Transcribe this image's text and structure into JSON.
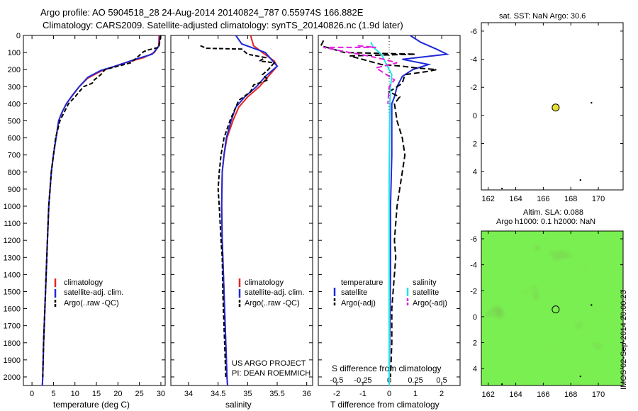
{
  "header": {
    "line1": "Argo profile: AO 5904518_28 24-Aug-2014 20140824_787 0.55974S 166.882E",
    "line2": "Climatology: CARS2009. Satellite-adjusted climatology: synTS_20140826.nc (1.9d later)"
  },
  "colors": {
    "climatology": "#e8231f",
    "satellite": "#1f2ad8",
    "argo": "#000000",
    "sat_salinity": "#22e3e8",
    "argo_salinity": "#e020e0",
    "map_green": "#3bbd3b"
  },
  "side_text": "IMOS 02-Sep-2014 20:00:23",
  "chart_data": [
    {
      "type": "line",
      "name": "temperature-profile",
      "xlabel": "temperature (deg C)",
      "ylabel": "",
      "xlim": [
        -2,
        31
      ],
      "ylim": [
        2050,
        0
      ],
      "xticks": [
        "0",
        "5",
        "10",
        "15",
        "20",
        "25",
        "30"
      ],
      "xtick_values": [
        0,
        5,
        10,
        15,
        20,
        25,
        30
      ],
      "yticks": [
        "0",
        "100",
        "200",
        "300",
        "400",
        "500",
        "600",
        "700",
        "800",
        "900",
        "1000",
        "1100",
        "1200",
        "1300",
        "1400",
        "1500",
        "1600",
        "1700",
        "1800",
        "1900",
        "2000"
      ],
      "ytick_values": [
        0,
        100,
        200,
        300,
        400,
        500,
        600,
        700,
        800,
        900,
        1000,
        1100,
        1200,
        1300,
        1400,
        1500,
        1600,
        1700,
        1800,
        1900,
        2000
      ],
      "legend": [
        "climatology",
        "satellite-adj. clim.",
        "Argo(..raw -QC)"
      ],
      "series": [
        {
          "name": "climatology",
          "color_key": "climatology",
          "dash": "none",
          "points": [
            [
              29.6,
              0
            ],
            [
              29.5,
              60
            ],
            [
              28.5,
              100
            ],
            [
              26,
              130
            ],
            [
              21,
              165
            ],
            [
              16,
              210
            ],
            [
              13,
              250
            ],
            [
              11,
              300
            ],
            [
              9.5,
              350
            ],
            [
              8,
              400
            ],
            [
              7,
              450
            ],
            [
              6.2,
              500
            ],
            [
              5.6,
              600
            ],
            [
              5,
              700
            ],
            [
              4.5,
              800
            ],
            [
              4.2,
              900
            ],
            [
              3.9,
              1000
            ],
            [
              3.6,
              1200
            ],
            [
              3.3,
              1400
            ],
            [
              3,
              1600
            ],
            [
              2.7,
              1800
            ],
            [
              2.5,
              2000
            ],
            [
              2.4,
              2050
            ]
          ]
        },
        {
          "name": "satellite",
          "color_key": "satellite",
          "dash": "none",
          "points": [
            [
              29.8,
              0
            ],
            [
              29.6,
              60
            ],
            [
              28,
              110
            ],
            [
              24,
              140
            ],
            [
              20,
              175
            ],
            [
              16,
              205
            ],
            [
              13,
              245
            ],
            [
              11,
              300
            ],
            [
              9.4,
              350
            ],
            [
              8,
              400
            ],
            [
              7,
              450
            ],
            [
              6.2,
              500
            ],
            [
              5.6,
              600
            ],
            [
              5,
              700
            ],
            [
              4.5,
              800
            ],
            [
              4.2,
              900
            ],
            [
              3.9,
              1000
            ],
            [
              3.6,
              1200
            ],
            [
              3.3,
              1400
            ],
            [
              3,
              1600
            ],
            [
              2.7,
              1800
            ],
            [
              2.5,
              2000
            ],
            [
              2.4,
              2050
            ]
          ]
        },
        {
          "name": "argo",
          "color_key": "argo",
          "dash": "6,3",
          "points": [
            [
              30,
              0
            ],
            [
              29.5,
              70
            ],
            [
              27,
              85
            ],
            [
              26,
              95
            ],
            [
              23,
              160
            ],
            [
              20,
              180
            ],
            [
              17,
              200
            ],
            [
              16,
              230
            ],
            [
              14.5,
              260
            ],
            [
              14,
              280
            ],
            [
              12,
              300
            ],
            [
              11,
              330
            ],
            [
              10,
              360
            ],
            [
              8.5,
              400
            ],
            [
              7.5,
              450
            ],
            [
              6.5,
              500
            ],
            [
              5.5,
              600
            ],
            [
              5,
              700
            ],
            [
              4.5,
              800
            ],
            [
              4.2,
              900
            ],
            [
              3.9,
              1000
            ],
            [
              3.6,
              1200
            ],
            [
              3.3,
              1400
            ],
            [
              3,
              1600
            ],
            [
              2.7,
              1800
            ],
            [
              2.5,
              2000
            ]
          ]
        }
      ]
    },
    {
      "type": "line",
      "name": "salinity-profile",
      "xlabel": "salinity",
      "ylabel": "",
      "xlim": [
        33.7,
        36.1
      ],
      "ylim": [
        2050,
        0
      ],
      "xticks": [
        "34",
        "34.5",
        "35",
        "35.5",
        "36"
      ],
      "xtick_values": [
        34,
        34.5,
        35,
        35.5,
        36
      ],
      "legend": [
        "climatology",
        "satellite-adj. clim.",
        "Argo(..raw -QC)"
      ],
      "annotations": [
        "US ARGO PROJECT",
        "PI: DEAN ROEMMICH"
      ],
      "series": [
        {
          "name": "climatology",
          "color_key": "climatology",
          "dash": "none",
          "points": [
            [
              35.05,
              0
            ],
            [
              35.1,
              60
            ],
            [
              35.25,
              100
            ],
            [
              35.45,
              150
            ],
            [
              35.5,
              180
            ],
            [
              35.35,
              240
            ],
            [
              35.2,
              300
            ],
            [
              35,
              360
            ],
            [
              34.85,
              420
            ],
            [
              34.75,
              500
            ],
            [
              34.65,
              600
            ],
            [
              34.6,
              700
            ],
            [
              34.57,
              800
            ],
            [
              34.56,
              1000
            ],
            [
              34.57,
              1200
            ],
            [
              34.6,
              1500
            ],
            [
              34.63,
              1800
            ],
            [
              34.65,
              2000
            ],
            [
              34.66,
              2050
            ]
          ]
        },
        {
          "name": "satellite",
          "color_key": "satellite",
          "dash": "none",
          "points": [
            [
              34.8,
              0
            ],
            [
              34.9,
              50
            ],
            [
              35.3,
              100
            ],
            [
              35.5,
              180
            ],
            [
              35.3,
              240
            ],
            [
              35.15,
              300
            ],
            [
              34.95,
              360
            ],
            [
              34.8,
              420
            ],
            [
              34.72,
              500
            ],
            [
              34.64,
              600
            ],
            [
              34.6,
              700
            ],
            [
              34.57,
              800
            ],
            [
              34.56,
              1000
            ],
            [
              34.57,
              1200
            ],
            [
              34.6,
              1500
            ],
            [
              34.63,
              1800
            ],
            [
              34.65,
              2000
            ],
            [
              34.66,
              2050
            ]
          ]
        },
        {
          "name": "argo",
          "color_key": "argo",
          "dash": "6,3",
          "points": [
            [
              34.2,
              60
            ],
            [
              34.3,
              75
            ],
            [
              34.9,
              80
            ],
            [
              35.0,
              110
            ],
            [
              35.3,
              130
            ],
            [
              35.2,
              150
            ],
            [
              35.45,
              160
            ],
            [
              35.35,
              200
            ],
            [
              35.25,
              230
            ],
            [
              35.35,
              260
            ],
            [
              35.1,
              290
            ],
            [
              35.05,
              330
            ],
            [
              34.85,
              380
            ],
            [
              34.8,
              420
            ],
            [
              34.7,
              500
            ],
            [
              34.6,
              600
            ],
            [
              34.55,
              700
            ],
            [
              34.52,
              800
            ],
            [
              34.5,
              900
            ],
            [
              34.52,
              1000
            ],
            [
              34.55,
              1200
            ],
            [
              34.57,
              1300
            ],
            [
              34.58,
              1500
            ],
            [
              34.6,
              1700
            ],
            [
              34.62,
              1900
            ],
            [
              34.63,
              2000
            ]
          ]
        }
      ]
    },
    {
      "type": "line",
      "name": "difference-profile",
      "xlabel": "T difference from climatology",
      "xlabel2": "S difference from climatology",
      "xlim": [
        -2.7,
        2.7
      ],
      "ylim": [
        2050,
        0
      ],
      "xticks": [
        "-2",
        "-1",
        "0",
        "1",
        "2"
      ],
      "xtick_values": [
        -2,
        -1,
        0,
        1,
        2
      ],
      "xticks2": [
        "-0.5",
        "-0.25",
        "0",
        "0.25",
        "0.5"
      ],
      "xtick2_values": [
        -0.5,
        -0.25,
        0,
        0.25,
        0.5
      ],
      "legend_headers": [
        "temperature",
        "salinity"
      ],
      "legend": [
        "satellite",
        "Argo(-adj)",
        "satellite",
        "Argo(-adj)"
      ],
      "series": [
        {
          "name": "temperature satellite",
          "color_key": "satellite",
          "dash": "none",
          "points": [
            [
              0.8,
              0
            ],
            [
              1.2,
              40
            ],
            [
              1.8,
              80
            ],
            [
              2.2,
              110
            ],
            [
              0.5,
              140
            ],
            [
              1.5,
              170
            ],
            [
              0.9,
              200
            ],
            [
              0.5,
              240
            ],
            [
              0.3,
              300
            ],
            [
              0.2,
              360
            ],
            [
              0.1,
              400
            ],
            [
              0.1,
              500
            ],
            [
              0.1,
              700
            ],
            [
              0.05,
              1000
            ],
            [
              0.05,
              1400
            ],
            [
              0,
              2000
            ],
            [
              0,
              2050
            ]
          ]
        },
        {
          "name": "temperature Argo(-adj)",
          "color_key": "argo",
          "dash": "8,4",
          "points": [
            [
              -2.5,
              30
            ],
            [
              -2.6,
              60
            ],
            [
              -1.7,
              100
            ],
            [
              1,
              110
            ],
            [
              -1.5,
              120
            ],
            [
              -0.3,
              170
            ],
            [
              0.5,
              180
            ],
            [
              1,
              190
            ],
            [
              1.8,
              200
            ],
            [
              1.5,
              210
            ],
            [
              0.6,
              230
            ],
            [
              0.5,
              280
            ],
            [
              0,
              330
            ],
            [
              0.4,
              360
            ],
            [
              0.2,
              400
            ],
            [
              0.3,
              500
            ],
            [
              0.5,
              600
            ],
            [
              0.6,
              700
            ],
            [
              0.5,
              800
            ],
            [
              0.4,
              900
            ],
            [
              0.3,
              1000
            ],
            [
              0.2,
              1200
            ],
            [
              0.25,
              1300
            ],
            [
              0.2,
              1400
            ],
            [
              0.1,
              1600
            ],
            [
              0.1,
              1800
            ],
            [
              0.05,
              2000
            ]
          ]
        },
        {
          "name": "salinity satellite",
          "color_key": "sat_salinity",
          "dash": "none",
          "points": [
            [
              -0.7,
              40
            ],
            [
              -0.6,
              70
            ],
            [
              -0.3,
              110
            ],
            [
              -0.1,
              170
            ],
            [
              0.1,
              230
            ],
            [
              0.05,
              300
            ],
            [
              0.02,
              500
            ],
            [
              0,
              800
            ],
            [
              0,
              1200
            ],
            [
              0,
              2050
            ]
          ]
        },
        {
          "name": "salinity Argo(-adj)",
          "color_key": "argo_salinity",
          "dash": "8,4",
          "points": [
            [
              -1.2,
              60
            ],
            [
              -0.5,
              70
            ],
            [
              -2.5,
              70
            ],
            [
              -1.5,
              100
            ],
            [
              -0.8,
              120
            ],
            [
              -0.2,
              140
            ],
            [
              0.3,
              160
            ],
            [
              -0.5,
              190
            ],
            [
              -0.1,
              230
            ],
            [
              0.2,
              260
            ],
            [
              0,
              300
            ],
            [
              -0.05,
              400
            ]
          ]
        }
      ]
    },
    {
      "type": "scatter",
      "name": "sst-map",
      "title": "sat. SST: NaN Argo: 30.6",
      "xlim": [
        161.5,
        171.8
      ],
      "ylim": [
        -6.6,
        5.3
      ],
      "xticks": [
        "162",
        "164",
        "166",
        "168",
        "170"
      ],
      "xtick_values": [
        162,
        164,
        166,
        168,
        170
      ],
      "yticks": [
        "4",
        "2",
        "0",
        "-2",
        "-4",
        "-6"
      ],
      "ytick_values": [
        4,
        2,
        0,
        -2,
        -4,
        -6
      ],
      "points": [
        [
          166.9,
          -0.56
        ]
      ],
      "minor_points": [
        [
          163,
          5.2
        ],
        [
          168.7,
          4.6
        ],
        [
          169.5,
          -0.9
        ]
      ]
    },
    {
      "type": "heatmap",
      "name": "sla-map",
      "title": "Altim. SLA: 0.088",
      "title2": "Argo h1000: 0.1 h2000: NaN",
      "xlim": [
        161.5,
        171.8
      ],
      "ylim": [
        -6.6,
        5.3
      ],
      "xticks": [
        "162",
        "164",
        "166",
        "168",
        "170"
      ],
      "xtick_values": [
        162,
        164,
        166,
        168,
        170
      ],
      "yticks": [
        "4",
        "2",
        "0",
        "-2",
        "-4",
        "-6"
      ],
      "ytick_values": [
        4,
        2,
        0,
        -2,
        -4,
        -6
      ],
      "points": [
        [
          166.9,
          -0.56
        ]
      ],
      "minor_points": [
        [
          163,
          5.2
        ],
        [
          168.7,
          4.6
        ],
        [
          169.5,
          -0.9
        ]
      ]
    }
  ]
}
